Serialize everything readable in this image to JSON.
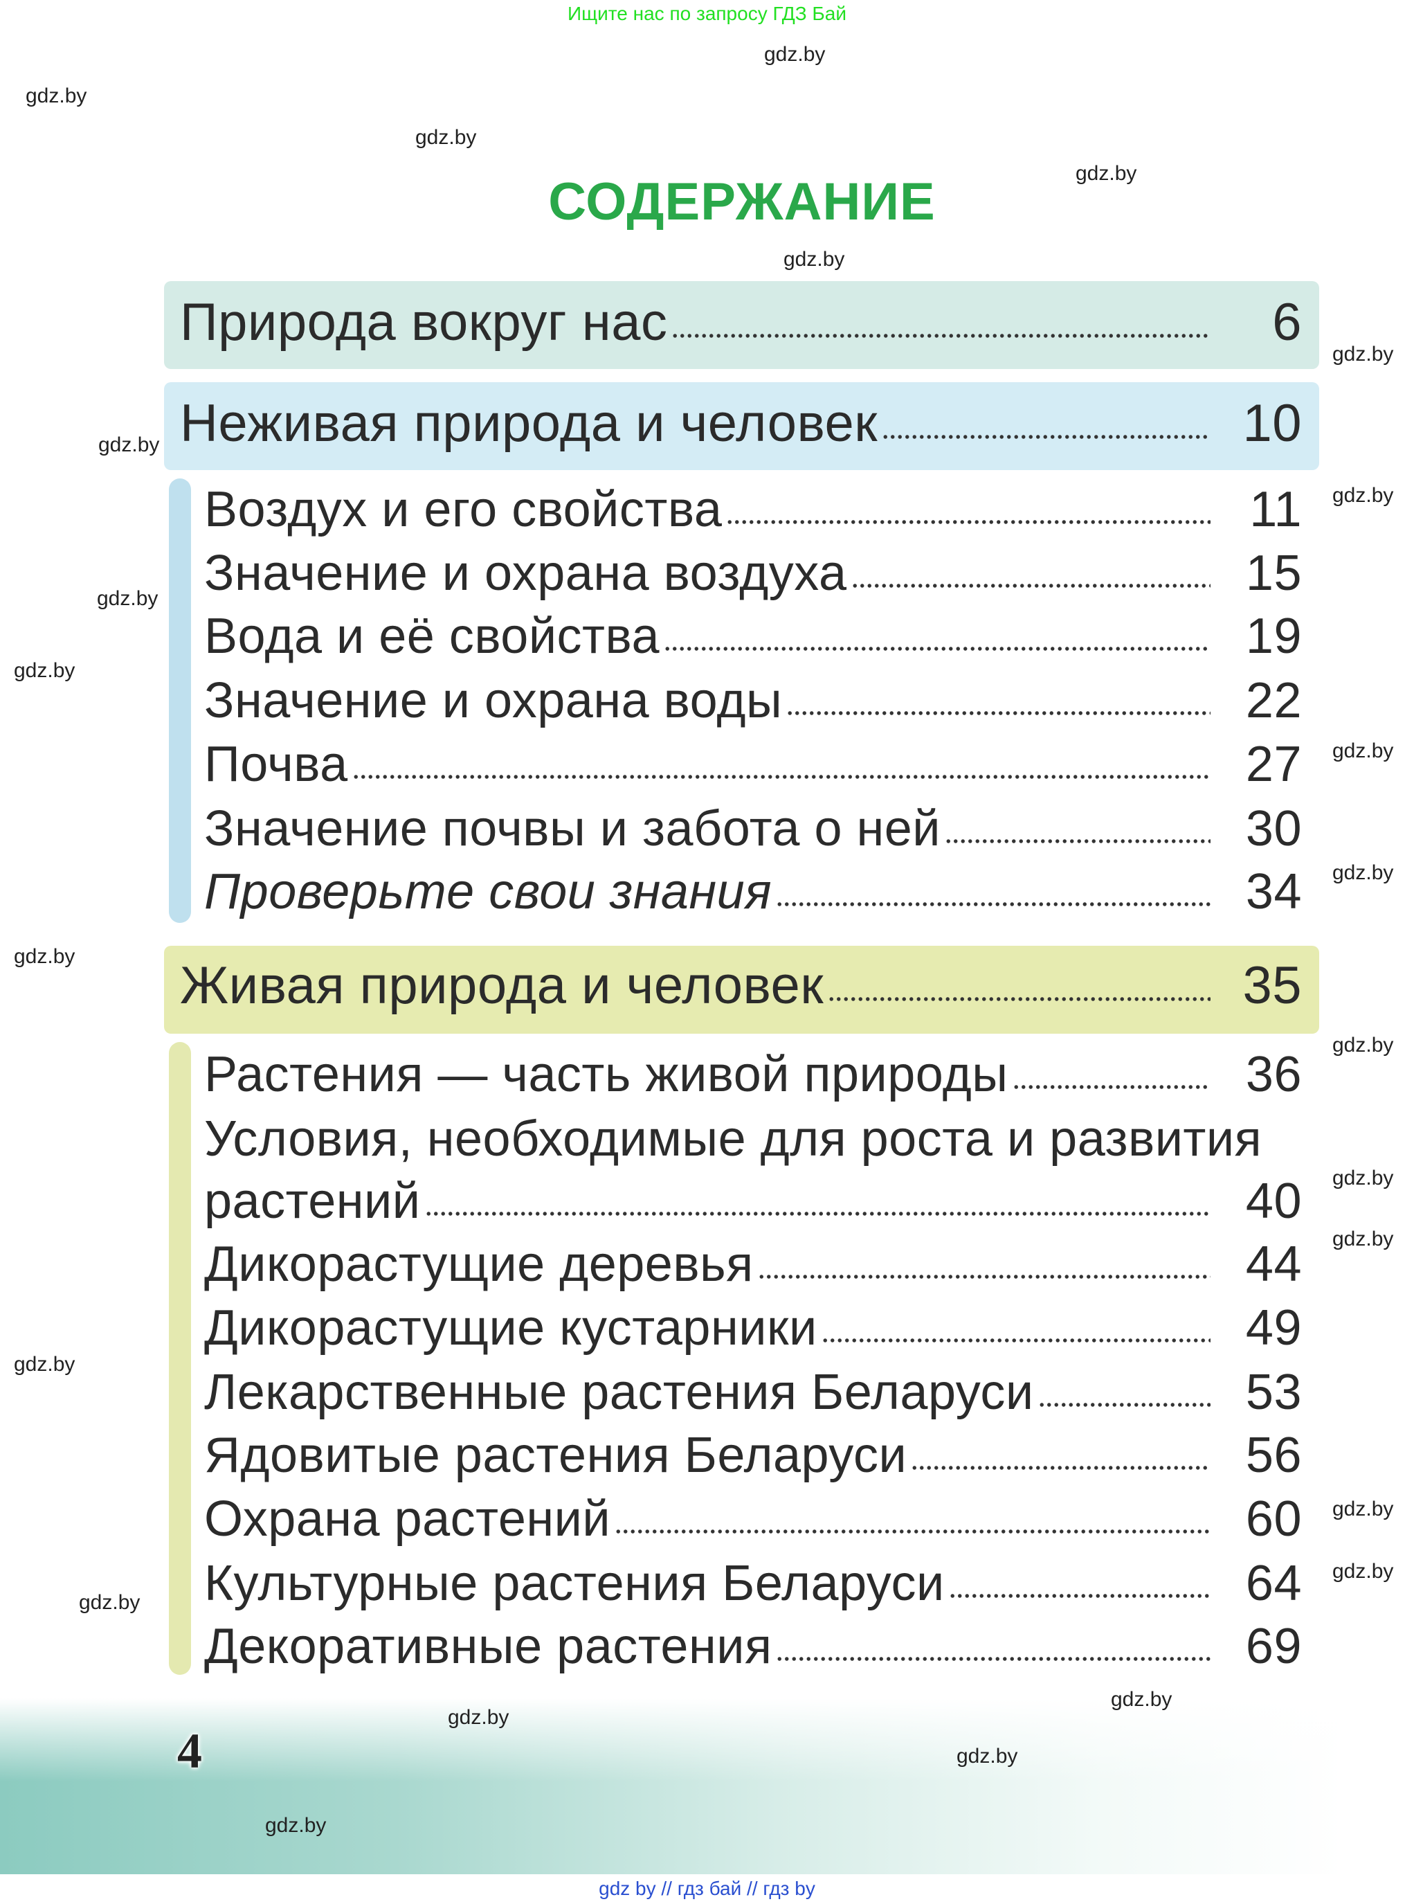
{
  "banner": "Ищите нас по запросу ГДЗ Бай",
  "title": "СОДЕРЖАНИЕ",
  "colors": {
    "title": "#2aa84a",
    "section1": "#d5ebe6",
    "section2": "#d4ecf5",
    "section3": "#e6ebb0",
    "accent_blue": "#bfe0ee",
    "accent_yellow": "#e4e9b0"
  },
  "sections": [
    {
      "title": "Природа вокруг нас",
      "page": "6"
    },
    {
      "title": "Неживая природа и человек",
      "page": "10",
      "items": [
        {
          "title": "Воздух и его свойства",
          "page": "11"
        },
        {
          "title": "Значение и охрана воздуха",
          "page": "15"
        },
        {
          "title": "Вода и её свойства",
          "page": "19"
        },
        {
          "title": "Значение и охрана воды",
          "page": "22"
        },
        {
          "title": "Почва",
          "page": "27"
        },
        {
          "title": "Значение почвы и забота о ней",
          "page": "30"
        },
        {
          "title": "Проверьте свои знания",
          "page": "34"
        }
      ]
    },
    {
      "title": "Живая природа и человек",
      "page": "35",
      "items": [
        {
          "title": "Растения — часть живой природы",
          "page": "36"
        },
        {
          "title": "Условия, необходимые для роста и развития",
          "title_cont": "растений",
          "page": "40"
        },
        {
          "title": "Дикорастущие деревья",
          "page": "44"
        },
        {
          "title": "Дикорастущие кустарники",
          "page": "49"
        },
        {
          "title": "Лекарственные растения Беларуси",
          "page": "53"
        },
        {
          "title": "Ядовитые растения Беларуси",
          "page": "56"
        },
        {
          "title": "Охрана растений",
          "page": "60"
        },
        {
          "title": "Культурные растения Беларуси",
          "page": "64"
        },
        {
          "title": "Декоративные растения",
          "page": "69"
        }
      ]
    }
  ],
  "page_number": "4",
  "watermark": "gdz.by",
  "footer": "gdz by  //  гдз бай  //  гдз by"
}
